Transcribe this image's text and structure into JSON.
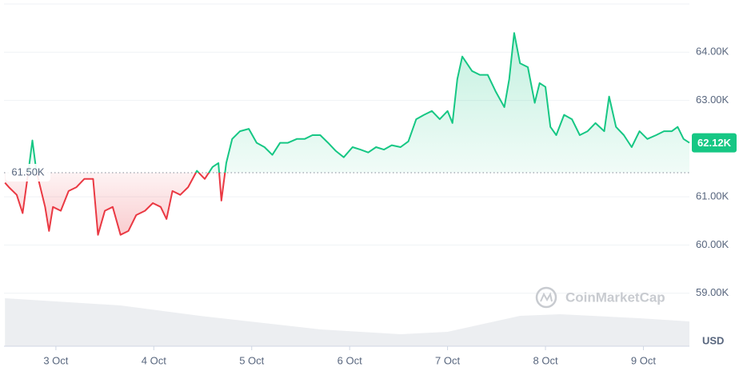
{
  "chart_data": {
    "type": "line",
    "x": [
      -0.52,
      -0.48,
      -0.4,
      -0.34,
      -0.28,
      -0.24,
      -0.2,
      -0.11,
      -0.07,
      -0.03,
      0.05,
      0.13,
      0.21,
      0.29,
      0.38,
      0.43,
      0.5,
      0.58,
      0.66,
      0.74,
      0.82,
      0.91,
      0.99,
      1.07,
      1.13,
      1.19,
      1.27,
      1.35,
      1.44,
      1.52,
      1.6,
      1.66,
      1.69,
      1.74,
      1.8,
      1.88,
      1.97,
      2.05,
      2.13,
      2.21,
      2.29,
      2.37,
      2.46,
      2.54,
      2.62,
      2.7,
      2.78,
      2.86,
      2.94,
      3.03,
      3.11,
      3.19,
      3.27,
      3.35,
      3.43,
      3.52,
      3.6,
      3.68,
      3.76,
      3.84,
      3.92,
      4.0,
      4.05,
      4.1,
      4.15,
      4.25,
      4.33,
      4.41,
      4.49,
      4.58,
      4.63,
      4.68,
      4.74,
      4.82,
      4.89,
      4.94,
      5.0,
      5.05,
      5.11,
      5.19,
      5.27,
      5.35,
      5.43,
      5.51,
      5.6,
      5.65,
      5.72,
      5.8,
      5.88,
      5.96,
      6.04,
      6.13,
      6.21,
      6.29,
      6.35,
      6.41,
      6.47
    ],
    "values": [
      61290,
      61200,
      61040,
      60660,
      61540,
      62170,
      61540,
      60790,
      60290,
      60790,
      60710,
      61120,
      61200,
      61370,
      61370,
      60210,
      60710,
      60790,
      60210,
      60290,
      60620,
      60710,
      60870,
      60790,
      60540,
      61120,
      61040,
      61200,
      61540,
      61370,
      61620,
      61700,
      60920,
      61700,
      62200,
      62360,
      62410,
      62120,
      62030,
      61870,
      62120,
      62120,
      62200,
      62200,
      62280,
      62280,
      62120,
      61950,
      61820,
      62030,
      61980,
      61920,
      62030,
      61980,
      62070,
      62030,
      62150,
      62610,
      62700,
      62780,
      62610,
      62780,
      62530,
      63440,
      63910,
      63610,
      63530,
      63530,
      63190,
      62860,
      63440,
      64400,
      63770,
      63690,
      62950,
      63360,
      63280,
      62450,
      62280,
      62700,
      62610,
      62280,
      62360,
      62530,
      62360,
      63080,
      62450,
      62280,
      62030,
      62360,
      62200,
      62280,
      62360,
      62360,
      62450,
      62200,
      62120
    ],
    "up_color": "#16c784",
    "down_color": "#ea3943",
    "baseline": {
      "value": 61500,
      "label": "61.50K"
    },
    "last": {
      "value": 62120,
      "label": "62.12K"
    },
    "xlim": [
      -0.53,
      6.47
    ],
    "xticks": [
      {
        "value": 0,
        "label": "3 Oct"
      },
      {
        "value": 1,
        "label": "4 Oct"
      },
      {
        "value": 2,
        "label": "5 Oct"
      },
      {
        "value": 3,
        "label": "6 Oct"
      },
      {
        "value": 4,
        "label": "7 Oct"
      },
      {
        "value": 5,
        "label": "8 Oct"
      },
      {
        "value": 6,
        "label": "9 Oct"
      }
    ],
    "ylim": [
      57900,
      65000
    ],
    "yticks": [
      {
        "value": 59000,
        "label": "59.00K"
      },
      {
        "value": 60000,
        "label": "60.00K"
      },
      {
        "value": 61000,
        "label": "61.00K"
      },
      {
        "value": 63000,
        "label": "63.00K"
      },
      {
        "value": 64000,
        "label": "64.00K"
      }
    ],
    "grid": true,
    "unit": "USD",
    "watermark": "CoinMarketCap",
    "volume": {
      "x": [
        -0.52,
        0.66,
        1.47,
        2.7,
        3.52,
        4.0,
        4.74,
        5.15,
        5.96,
        6.47
      ],
      "values": [
        60,
        51,
        38,
        21,
        15,
        18,
        38,
        40,
        35,
        31
      ],
      "vlim": [
        0,
        100
      ],
      "color": "#eceef1"
    }
  }
}
